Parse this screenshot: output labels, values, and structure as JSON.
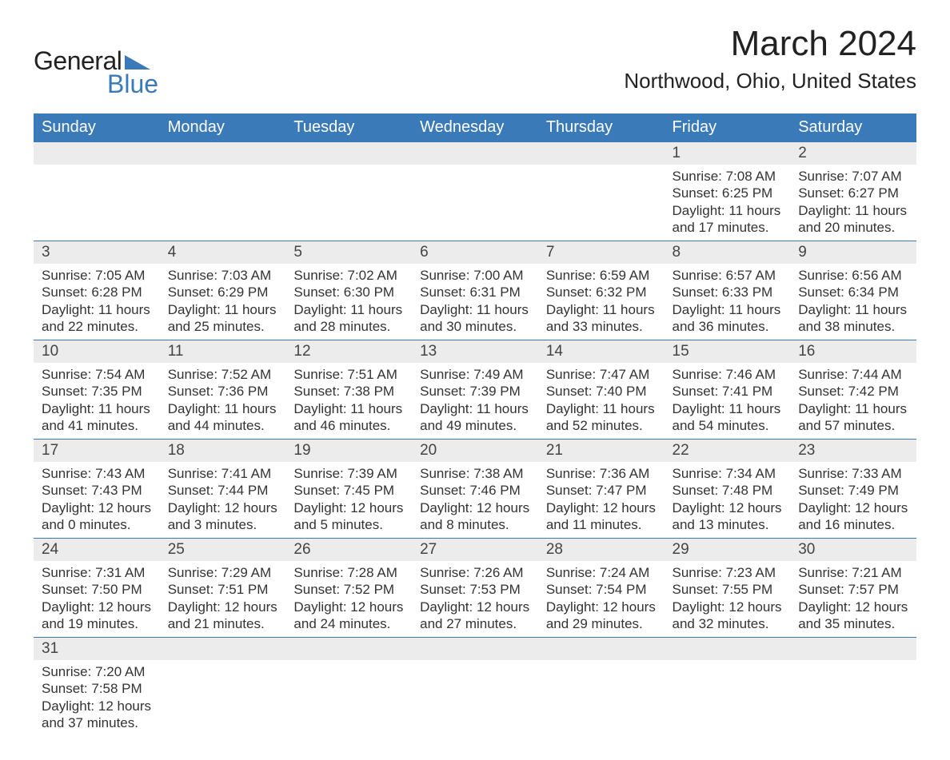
{
  "logo": {
    "text1": "General",
    "text2": "Blue",
    "shape_color": "#3b7ab8"
  },
  "title": "March 2024",
  "location": "Northwood, Ohio, United States",
  "header_bg": "#3b7ab8",
  "header_fg": "#ffffff",
  "daynum_bg": "#ececec",
  "grid_line": "#3b7ab8",
  "weekdays": [
    "Sunday",
    "Monday",
    "Tuesday",
    "Wednesday",
    "Thursday",
    "Friday",
    "Saturday"
  ],
  "weeks": [
    [
      null,
      null,
      null,
      null,
      null,
      {
        "n": "1",
        "sr": "Sunrise: 7:08 AM",
        "ss": "Sunset: 6:25 PM",
        "d1": "Daylight: 11 hours",
        "d2": "and 17 minutes."
      },
      {
        "n": "2",
        "sr": "Sunrise: 7:07 AM",
        "ss": "Sunset: 6:27 PM",
        "d1": "Daylight: 11 hours",
        "d2": "and 20 minutes."
      }
    ],
    [
      {
        "n": "3",
        "sr": "Sunrise: 7:05 AM",
        "ss": "Sunset: 6:28 PM",
        "d1": "Daylight: 11 hours",
        "d2": "and 22 minutes."
      },
      {
        "n": "4",
        "sr": "Sunrise: 7:03 AM",
        "ss": "Sunset: 6:29 PM",
        "d1": "Daylight: 11 hours",
        "d2": "and 25 minutes."
      },
      {
        "n": "5",
        "sr": "Sunrise: 7:02 AM",
        "ss": "Sunset: 6:30 PM",
        "d1": "Daylight: 11 hours",
        "d2": "and 28 minutes."
      },
      {
        "n": "6",
        "sr": "Sunrise: 7:00 AM",
        "ss": "Sunset: 6:31 PM",
        "d1": "Daylight: 11 hours",
        "d2": "and 30 minutes."
      },
      {
        "n": "7",
        "sr": "Sunrise: 6:59 AM",
        "ss": "Sunset: 6:32 PM",
        "d1": "Daylight: 11 hours",
        "d2": "and 33 minutes."
      },
      {
        "n": "8",
        "sr": "Sunrise: 6:57 AM",
        "ss": "Sunset: 6:33 PM",
        "d1": "Daylight: 11 hours",
        "d2": "and 36 minutes."
      },
      {
        "n": "9",
        "sr": "Sunrise: 6:56 AM",
        "ss": "Sunset: 6:34 PM",
        "d1": "Daylight: 11 hours",
        "d2": "and 38 minutes."
      }
    ],
    [
      {
        "n": "10",
        "sr": "Sunrise: 7:54 AM",
        "ss": "Sunset: 7:35 PM",
        "d1": "Daylight: 11 hours",
        "d2": "and 41 minutes."
      },
      {
        "n": "11",
        "sr": "Sunrise: 7:52 AM",
        "ss": "Sunset: 7:36 PM",
        "d1": "Daylight: 11 hours",
        "d2": "and 44 minutes."
      },
      {
        "n": "12",
        "sr": "Sunrise: 7:51 AM",
        "ss": "Sunset: 7:38 PM",
        "d1": "Daylight: 11 hours",
        "d2": "and 46 minutes."
      },
      {
        "n": "13",
        "sr": "Sunrise: 7:49 AM",
        "ss": "Sunset: 7:39 PM",
        "d1": "Daylight: 11 hours",
        "d2": "and 49 minutes."
      },
      {
        "n": "14",
        "sr": "Sunrise: 7:47 AM",
        "ss": "Sunset: 7:40 PM",
        "d1": "Daylight: 11 hours",
        "d2": "and 52 minutes."
      },
      {
        "n": "15",
        "sr": "Sunrise: 7:46 AM",
        "ss": "Sunset: 7:41 PM",
        "d1": "Daylight: 11 hours",
        "d2": "and 54 minutes."
      },
      {
        "n": "16",
        "sr": "Sunrise: 7:44 AM",
        "ss": "Sunset: 7:42 PM",
        "d1": "Daylight: 11 hours",
        "d2": "and 57 minutes."
      }
    ],
    [
      {
        "n": "17",
        "sr": "Sunrise: 7:43 AM",
        "ss": "Sunset: 7:43 PM",
        "d1": "Daylight: 12 hours",
        "d2": "and 0 minutes."
      },
      {
        "n": "18",
        "sr": "Sunrise: 7:41 AM",
        "ss": "Sunset: 7:44 PM",
        "d1": "Daylight: 12 hours",
        "d2": "and 3 minutes."
      },
      {
        "n": "19",
        "sr": "Sunrise: 7:39 AM",
        "ss": "Sunset: 7:45 PM",
        "d1": "Daylight: 12 hours",
        "d2": "and 5 minutes."
      },
      {
        "n": "20",
        "sr": "Sunrise: 7:38 AM",
        "ss": "Sunset: 7:46 PM",
        "d1": "Daylight: 12 hours",
        "d2": "and 8 minutes."
      },
      {
        "n": "21",
        "sr": "Sunrise: 7:36 AM",
        "ss": "Sunset: 7:47 PM",
        "d1": "Daylight: 12 hours",
        "d2": "and 11 minutes."
      },
      {
        "n": "22",
        "sr": "Sunrise: 7:34 AM",
        "ss": "Sunset: 7:48 PM",
        "d1": "Daylight: 12 hours",
        "d2": "and 13 minutes."
      },
      {
        "n": "23",
        "sr": "Sunrise: 7:33 AM",
        "ss": "Sunset: 7:49 PM",
        "d1": "Daylight: 12 hours",
        "d2": "and 16 minutes."
      }
    ],
    [
      {
        "n": "24",
        "sr": "Sunrise: 7:31 AM",
        "ss": "Sunset: 7:50 PM",
        "d1": "Daylight: 12 hours",
        "d2": "and 19 minutes."
      },
      {
        "n": "25",
        "sr": "Sunrise: 7:29 AM",
        "ss": "Sunset: 7:51 PM",
        "d1": "Daylight: 12 hours",
        "d2": "and 21 minutes."
      },
      {
        "n": "26",
        "sr": "Sunrise: 7:28 AM",
        "ss": "Sunset: 7:52 PM",
        "d1": "Daylight: 12 hours",
        "d2": "and 24 minutes."
      },
      {
        "n": "27",
        "sr": "Sunrise: 7:26 AM",
        "ss": "Sunset: 7:53 PM",
        "d1": "Daylight: 12 hours",
        "d2": "and 27 minutes."
      },
      {
        "n": "28",
        "sr": "Sunrise: 7:24 AM",
        "ss": "Sunset: 7:54 PM",
        "d1": "Daylight: 12 hours",
        "d2": "and 29 minutes."
      },
      {
        "n": "29",
        "sr": "Sunrise: 7:23 AM",
        "ss": "Sunset: 7:55 PM",
        "d1": "Daylight: 12 hours",
        "d2": "and 32 minutes."
      },
      {
        "n": "30",
        "sr": "Sunrise: 7:21 AM",
        "ss": "Sunset: 7:57 PM",
        "d1": "Daylight: 12 hours",
        "d2": "and 35 minutes."
      }
    ],
    [
      {
        "n": "31",
        "sr": "Sunrise: 7:20 AM",
        "ss": "Sunset: 7:58 PM",
        "d1": "Daylight: 12 hours",
        "d2": "and 37 minutes."
      },
      null,
      null,
      null,
      null,
      null,
      null
    ]
  ]
}
